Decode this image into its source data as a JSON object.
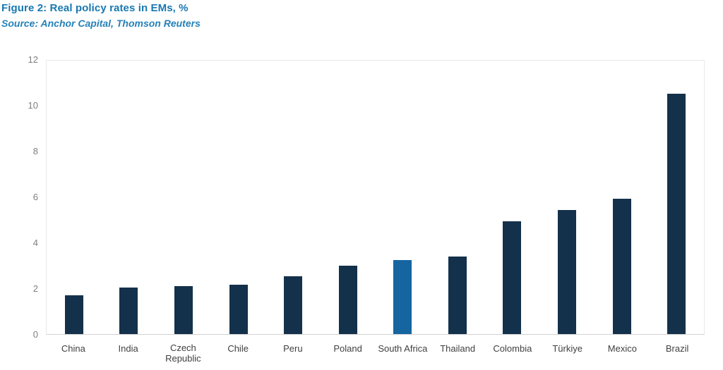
{
  "figure": {
    "title": "Figure 2: Real policy rates in EMs, %",
    "source": "Source: Anchor Capital, Thomson Reuters"
  },
  "chart_data": {
    "type": "bar",
    "title": "Figure 2: Real policy rates in EMs, %",
    "source": "Source: Anchor Capital, Thomson Reuters",
    "categories": [
      "China",
      "India",
      "Czech Republic",
      "Chile",
      "Peru",
      "Poland",
      "South Africa",
      "Thailand",
      "Colombia",
      "Türkiye",
      "Mexico",
      "Brazil"
    ],
    "values": [
      1.7,
      2.05,
      2.1,
      2.15,
      2.55,
      3.0,
      3.25,
      3.4,
      4.95,
      5.45,
      5.95,
      10.55
    ],
    "highlight_category": "South Africa",
    "highlight_index": 6,
    "xlabel": "",
    "ylabel": "",
    "ylim": [
      0,
      12
    ],
    "yticks": [
      0,
      2,
      4,
      6,
      8,
      10,
      12
    ],
    "grid": false,
    "legend": "none",
    "colors": {
      "bar": "#14314B",
      "highlight_bar": "#1565A0",
      "title": "#1878B1",
      "source": "#2581B8",
      "ytick_label": "#7F7F7F",
      "xtick_label": "#404040",
      "plot_border": "#E9E9E9",
      "axis_line": "#D2D2D2",
      "background": "#FFFFFF"
    }
  }
}
